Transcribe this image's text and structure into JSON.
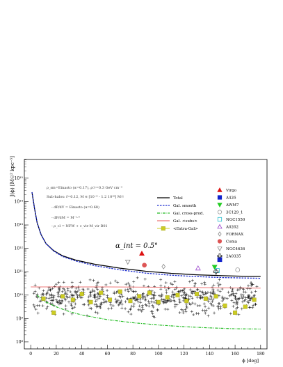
{
  "chart_data": {
    "type": "scatter",
    "xlabel": "ϕ [deg]",
    "ylabel": "J(ϕ) [M☉² kpc⁻⁵]",
    "xlim": [
      -5,
      185
    ],
    "ylim_log10": [
      7.7,
      15.8
    ],
    "log_scale_y": true,
    "x_ticks": [
      0,
      20,
      40,
      60,
      80,
      100,
      120,
      140,
      160,
      180
    ],
    "x_tick_labels": [
      "0",
      "20",
      "40",
      "60",
      "80",
      "100",
      "120",
      "140",
      "160",
      "180"
    ],
    "y_tick_exponents": [
      8,
      9,
      10,
      11,
      12,
      13,
      14,
      15
    ],
    "y_tick_labels": [
      "10⁸",
      "10⁹",
      "10¹⁰",
      "10¹¹",
      "10¹²",
      "10¹³",
      "10¹⁴",
      "10¹⁵"
    ],
    "angle_label": "α_int = 0.5°",
    "model_annotations": [
      "ρ_sm=Einasto (α=0.17), ρ☉=0.3 GeV cm⁻³",
      "Sub-halos: f=0.12, M ∈ [10⁻⁶ - 1.2 10¹⁰] M☉",
      "- dP/dV = Einasto (α=0.68)",
      "- dP/dM = M⁻¹·⁹",
      "- ρ_cl = NFW + c_vir-M_vir B01"
    ],
    "curves": {
      "total": {
        "name": "Total",
        "color": "#000000",
        "x": [
          1,
          3,
          5,
          8,
          12,
          18,
          25,
          35,
          50,
          70,
          90,
          110,
          130,
          150,
          170,
          180
        ],
        "log10_y": [
          14.4,
          13.7,
          13.1,
          12.6,
          12.2,
          11.9,
          11.68,
          11.5,
          11.32,
          11.15,
          11.02,
          10.93,
          10.87,
          10.83,
          10.8,
          10.8
        ]
      },
      "smooth": {
        "name": "Gal. smooth",
        "color": "#1f2fd0",
        "x": [
          1,
          3,
          5,
          8,
          12,
          18,
          25,
          35,
          50,
          70,
          90,
          110,
          130,
          150,
          170,
          180
        ],
        "log10_y": [
          14.4,
          13.7,
          13.1,
          12.6,
          12.2,
          11.88,
          11.65,
          11.46,
          11.26,
          11.08,
          10.94,
          10.85,
          10.79,
          10.75,
          10.73,
          10.72
        ]
      },
      "cross": {
        "name": "Gal. cross-prod.",
        "color": "#22bb22",
        "x": [
          5,
          10,
          20,
          30,
          40,
          60,
          80,
          100,
          120,
          140,
          160,
          180
        ],
        "log10_y": [
          10.0,
          9.75,
          9.5,
          9.3,
          9.15,
          8.95,
          8.82,
          8.72,
          8.65,
          8.6,
          8.56,
          8.55
        ]
      },
      "subs": {
        "name": "Gal. <subs>",
        "color": "#ee7777",
        "x": [
          0,
          60,
          120,
          180
        ],
        "log10_y": [
          10.35,
          10.35,
          10.33,
          10.3
        ]
      }
    },
    "extragal_points": {
      "name": "<Extra-Gal>",
      "color": "#cccc22",
      "x": [
        10,
        18,
        25,
        33,
        40,
        47,
        55,
        62,
        70,
        78,
        85,
        93,
        100,
        107,
        115,
        122,
        130,
        137,
        145,
        152,
        160,
        168,
        175
      ],
      "log10_y": [
        9.85,
        9.25,
        9.95,
        9.8,
        10.05,
        9.7,
        10.1,
        9.8,
        10.15,
        9.75,
        9.95,
        10.1,
        9.7,
        9.9,
        10.0,
        9.75,
        10.05,
        9.85,
        9.95,
        9.55,
        9.25,
        9.5,
        9.8
      ]
    },
    "clusters": [
      {
        "name": "Virgo",
        "marker": "triangle-up",
        "color": "#dd1111",
        "x": 87,
        "log10_y": 11.78
      },
      {
        "name": "A426",
        "marker": "square",
        "color": "#1122cc",
        "x": 148,
        "log10_y": 11.52
      },
      {
        "name": "AWM7",
        "marker": "triangle-down",
        "color": "#22cc22",
        "x": 144,
        "log10_y": 11.2
      },
      {
        "name": "3C129_1",
        "marker": "circle-open",
        "color": "#999999",
        "x": 162,
        "log10_y": 11.08
      },
      {
        "name": "NGC1550",
        "marker": "square-open",
        "color": "#22bbcc",
        "x": 146,
        "log10_y": 11.05
      },
      {
        "name": "A0262",
        "marker": "triangle-up-open",
        "color": "#9944cc",
        "x": 131,
        "log10_y": 11.15
      },
      {
        "name": "FORNAX",
        "marker": "diamond-open",
        "color": "#888888",
        "x": 104,
        "log10_y": 11.22
      },
      {
        "name": "Coma",
        "marker": "circle",
        "color": "#dd5555",
        "x": 89,
        "log10_y": 11.28
      },
      {
        "name": "NGC4636",
        "marker": "triangle-down-open",
        "color": "#888888",
        "x": 76,
        "log10_y": 11.42
      },
      {
        "name": "2A0335",
        "marker": "cross-open",
        "color": "#222222",
        "x": 145,
        "log10_y": 11.0
      }
    ],
    "background_halos": {
      "description_count": 1000,
      "x_range": [
        2,
        178
      ],
      "log10_y_center": 9.9,
      "log10_y_spread": 0.75
    },
    "legend_placement": "top-right"
  }
}
